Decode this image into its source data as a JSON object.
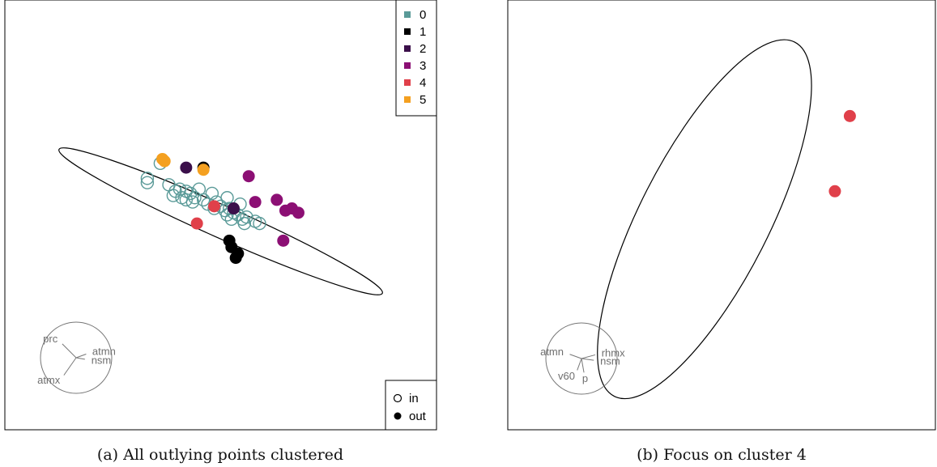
{
  "captions": {
    "a": "(a) All outlying points clustered",
    "b": "(b) Focus on cluster 4"
  },
  "colors": {
    "0": "#5a9a98",
    "1": "#000000",
    "2": "#3b0f4a",
    "3": "#8c0f74",
    "4": "#e0404a",
    "5": "#f4a020",
    "frame": "#000000",
    "axes_circle": "#777777"
  },
  "chart_data": [
    {
      "type": "scatter",
      "title": "",
      "xlabel": "",
      "ylabel": "",
      "xlim": [
        -1.0,
        1.0
      ],
      "ylim": [
        -1.0,
        1.0
      ],
      "grid": false,
      "legend_clusters": {
        "placement": "top-right",
        "entries": [
          {
            "label": "0",
            "color": "#5a9a98"
          },
          {
            "label": "1",
            "color": "#000000"
          },
          {
            "label": "2",
            "color": "#3b0f4a"
          },
          {
            "label": "3",
            "color": "#8c0f74"
          },
          {
            "label": "4",
            "color": "#e0404a"
          },
          {
            "label": "5",
            "color": "#f4a020"
          }
        ]
      },
      "legend_status": {
        "placement": "bottom-right",
        "entries": [
          {
            "label": "in",
            "marker": "open"
          },
          {
            "label": "out",
            "marker": "filled"
          }
        ]
      },
      "ellipse": {
        "cx": 0.0,
        "cy": -0.03,
        "rx": 0.82,
        "ry": 0.075,
        "angle_deg": -24
      },
      "points": [
        {
          "x": -0.28,
          "y": 0.24,
          "cluster": "0",
          "status": "in"
        },
        {
          "x": -0.34,
          "y": 0.17,
          "cluster": "0",
          "status": "in"
        },
        {
          "x": -0.34,
          "y": 0.15,
          "cluster": "0",
          "status": "in"
        },
        {
          "x": -0.24,
          "y": 0.14,
          "cluster": "0",
          "status": "in"
        },
        {
          "x": -0.21,
          "y": 0.11,
          "cluster": "0",
          "status": "in"
        },
        {
          "x": -0.19,
          "y": 0.12,
          "cluster": "0",
          "status": "in"
        },
        {
          "x": -0.16,
          "y": 0.11,
          "cluster": "0",
          "status": "in"
        },
        {
          "x": -0.22,
          "y": 0.09,
          "cluster": "0",
          "status": "in"
        },
        {
          "x": -0.14,
          "y": 0.1,
          "cluster": "0",
          "status": "in"
        },
        {
          "x": -0.1,
          "y": 0.12,
          "cluster": "0",
          "status": "in"
        },
        {
          "x": -0.04,
          "y": 0.1,
          "cluster": "0",
          "status": "in"
        },
        {
          "x": -0.18,
          "y": 0.08,
          "cluster": "0",
          "status": "in"
        },
        {
          "x": -0.12,
          "y": 0.08,
          "cluster": "0",
          "status": "in"
        },
        {
          "x": -0.08,
          "y": 0.07,
          "cluster": "0",
          "status": "in"
        },
        {
          "x": -0.16,
          "y": 0.07,
          "cluster": "0",
          "status": "in"
        },
        {
          "x": -0.13,
          "y": 0.06,
          "cluster": "0",
          "status": "in"
        },
        {
          "x": -0.06,
          "y": 0.05,
          "cluster": "0",
          "status": "in"
        },
        {
          "x": -0.02,
          "y": 0.06,
          "cluster": "0",
          "status": "in"
        },
        {
          "x": 0.0,
          "y": 0.04,
          "cluster": "0",
          "status": "in"
        },
        {
          "x": -0.03,
          "y": 0.03,
          "cluster": "0",
          "status": "in"
        },
        {
          "x": 0.02,
          "y": 0.02,
          "cluster": "0",
          "status": "in"
        },
        {
          "x": 0.04,
          "y": 0.03,
          "cluster": "0",
          "status": "in"
        },
        {
          "x": 0.03,
          "y": 0.0,
          "cluster": "0",
          "status": "in"
        },
        {
          "x": 0.06,
          "y": 0.01,
          "cluster": "0",
          "status": "in"
        },
        {
          "x": 0.08,
          "y": 0.0,
          "cluster": "0",
          "status": "in"
        },
        {
          "x": 0.05,
          "y": -0.02,
          "cluster": "0",
          "status": "in"
        },
        {
          "x": 0.1,
          "y": -0.02,
          "cluster": "0",
          "status": "in"
        },
        {
          "x": 0.12,
          "y": -0.01,
          "cluster": "0",
          "status": "in"
        },
        {
          "x": 0.03,
          "y": 0.08,
          "cluster": "0",
          "status": "in"
        },
        {
          "x": 0.11,
          "y": -0.04,
          "cluster": "0",
          "status": "in"
        },
        {
          "x": 0.18,
          "y": -0.04,
          "cluster": "0",
          "status": "in"
        },
        {
          "x": 0.16,
          "y": -0.03,
          "cluster": "0",
          "status": "in"
        },
        {
          "x": 0.09,
          "y": 0.05,
          "cluster": "0",
          "status": "in"
        },
        {
          "x": 0.04,
          "y": -0.12,
          "cluster": "1",
          "status": "out"
        },
        {
          "x": 0.05,
          "y": -0.15,
          "cluster": "1",
          "status": "out"
        },
        {
          "x": 0.08,
          "y": -0.18,
          "cluster": "1",
          "status": "out"
        },
        {
          "x": 0.07,
          "y": -0.2,
          "cluster": "1",
          "status": "out"
        },
        {
          "x": -0.08,
          "y": 0.22,
          "cluster": "1",
          "status": "out"
        },
        {
          "x": -0.16,
          "y": 0.22,
          "cluster": "2",
          "status": "out"
        },
        {
          "x": 0.06,
          "y": 0.03,
          "cluster": "2",
          "status": "out"
        },
        {
          "x": 0.13,
          "y": 0.18,
          "cluster": "3",
          "status": "out"
        },
        {
          "x": 0.16,
          "y": 0.06,
          "cluster": "3",
          "status": "out"
        },
        {
          "x": 0.26,
          "y": 0.07,
          "cluster": "3",
          "status": "out"
        },
        {
          "x": 0.3,
          "y": 0.02,
          "cluster": "3",
          "status": "out"
        },
        {
          "x": 0.33,
          "y": 0.03,
          "cluster": "3",
          "status": "out"
        },
        {
          "x": 0.36,
          "y": 0.01,
          "cluster": "3",
          "status": "out"
        },
        {
          "x": 0.29,
          "y": -0.12,
          "cluster": "3",
          "status": "out"
        },
        {
          "x": -0.03,
          "y": 0.04,
          "cluster": "4",
          "status": "out"
        },
        {
          "x": -0.11,
          "y": -0.04,
          "cluster": "4",
          "status": "out"
        },
        {
          "x": -0.27,
          "y": 0.26,
          "cluster": "5",
          "status": "out"
        },
        {
          "x": -0.26,
          "y": 0.25,
          "cluster": "5",
          "status": "out"
        },
        {
          "x": -0.08,
          "y": 0.21,
          "cluster": "5",
          "status": "out"
        }
      ],
      "axes_glyph": [
        {
          "label": "prc",
          "angle_deg": 135,
          "len": 0.55
        },
        {
          "label": "atmn",
          "angle_deg": 20,
          "len": 0.3
        },
        {
          "label": "nsm",
          "angle_deg": -10,
          "len": 0.25
        },
        {
          "label": "atmx",
          "angle_deg": -125,
          "len": 0.6
        }
      ]
    },
    {
      "type": "scatter",
      "title": "",
      "xlabel": "",
      "ylabel": "",
      "xlim": [
        -1.0,
        1.0
      ],
      "ylim": [
        -1.0,
        1.0
      ],
      "grid": false,
      "ellipse": {
        "cx": -0.08,
        "cy": -0.02,
        "rx": 0.93,
        "ry": 0.3,
        "angle_deg": 63
      },
      "points": [
        {
          "x": 0.6,
          "y": 0.46,
          "cluster": "4",
          "status": "out"
        },
        {
          "x": 0.53,
          "y": 0.11,
          "cluster": "4",
          "status": "out"
        }
      ],
      "axes_glyph": [
        {
          "label": "atmn",
          "angle_deg": 160,
          "len": 0.35
        },
        {
          "label": "rhmx",
          "angle_deg": 15,
          "len": 0.4
        },
        {
          "label": "nsm",
          "angle_deg": -8,
          "len": 0.35
        },
        {
          "label": "v60",
          "angle_deg": -110,
          "len": 0.35
        },
        {
          "label": "p",
          "angle_deg": -80,
          "len": 0.4
        }
      ]
    }
  ]
}
